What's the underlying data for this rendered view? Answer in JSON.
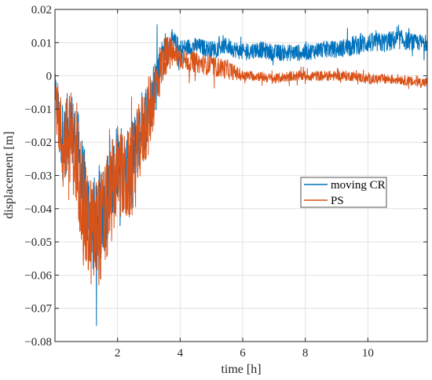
{
  "chart_data": {
    "type": "line",
    "title": "",
    "xlabel": "time [h]",
    "ylabel": "displacement [m]",
    "xlim": [
      0,
      11.9
    ],
    "ylim": [
      -0.08,
      0.02
    ],
    "xticks": [
      2,
      4,
      6,
      8,
      10
    ],
    "xtick_labels": [
      "2",
      "4",
      "6",
      "8",
      "10"
    ],
    "yticks": [
      -0.08,
      -0.07,
      -0.06,
      -0.05,
      -0.04,
      -0.03,
      -0.02,
      -0.01,
      0,
      0.01,
      0.02
    ],
    "ytick_labels": [
      "−0.08",
      "−0.07",
      "−0.06",
      "−0.05",
      "−0.04",
      "−0.03",
      "−0.02",
      "−0.01",
      "0",
      "0.01",
      "0.02"
    ],
    "grid": true,
    "legend_position": "center-right",
    "series": [
      {
        "name": "moving CR",
        "color": "#0072BD",
        "x": [
          0,
          0.25,
          0.5,
          0.75,
          1.0,
          1.25,
          1.5,
          1.75,
          2.0,
          2.25,
          2.5,
          2.75,
          3.0,
          3.25,
          3.5,
          3.75,
          4.0,
          4.5,
          5.0,
          5.5,
          6.0,
          6.5,
          7.0,
          7.5,
          8.0,
          8.5,
          9.0,
          9.5,
          10.0,
          10.5,
          11.0,
          11.5,
          11.9
        ],
        "y": [
          -0.005,
          -0.02,
          -0.015,
          -0.025,
          -0.04,
          -0.045,
          -0.04,
          -0.035,
          -0.025,
          -0.03,
          -0.025,
          -0.015,
          -0.01,
          0.0,
          0.008,
          0.01,
          0.008,
          0.009,
          0.008,
          0.009,
          0.007,
          0.008,
          0.007,
          0.007,
          0.007,
          0.008,
          0.008,
          0.009,
          0.01,
          0.01,
          0.011,
          0.01,
          0.01
        ],
        "noise": [
          0.006,
          0.012,
          0.012,
          0.014,
          0.015,
          0.015,
          0.015,
          0.014,
          0.012,
          0.012,
          0.012,
          0.01,
          0.01,
          0.008,
          0.005,
          0.004,
          0.003,
          0.0025,
          0.0025,
          0.0025,
          0.0025,
          0.0025,
          0.0025,
          0.0025,
          0.0025,
          0.0025,
          0.0025,
          0.003,
          0.003,
          0.003,
          0.003,
          0.0025,
          0.0025
        ]
      },
      {
        "name": "PS",
        "color": "#D95319",
        "x": [
          0,
          0.25,
          0.5,
          0.75,
          1.0,
          1.25,
          1.5,
          1.75,
          2.0,
          2.25,
          2.5,
          2.75,
          3.0,
          3.25,
          3.5,
          3.75,
          4.0,
          4.5,
          5.0,
          5.5,
          6.0,
          6.5,
          7.0,
          7.5,
          8.0,
          8.5,
          9.0,
          9.5,
          10.0,
          10.5,
          11.0,
          11.5,
          11.9
        ],
        "y": [
          -0.005,
          -0.022,
          -0.018,
          -0.028,
          -0.045,
          -0.048,
          -0.045,
          -0.038,
          -0.028,
          -0.032,
          -0.028,
          -0.018,
          -0.012,
          -0.002,
          0.006,
          0.007,
          0.005,
          0.004,
          0.003,
          0.002,
          0.0,
          0.0,
          -0.001,
          0.0,
          0.0,
          0.0,
          0.0,
          0.0,
          -0.001,
          -0.001,
          -0.001,
          -0.002,
          -0.002
        ],
        "noise": [
          0.007,
          0.014,
          0.014,
          0.016,
          0.017,
          0.017,
          0.017,
          0.016,
          0.014,
          0.014,
          0.014,
          0.012,
          0.012,
          0.009,
          0.006,
          0.005,
          0.003,
          0.003,
          0.003,
          0.003,
          0.0015,
          0.0015,
          0.0015,
          0.0015,
          0.0015,
          0.0015,
          0.0015,
          0.0015,
          0.0015,
          0.0015,
          0.0015,
          0.0015,
          0.0015
        ]
      }
    ]
  }
}
